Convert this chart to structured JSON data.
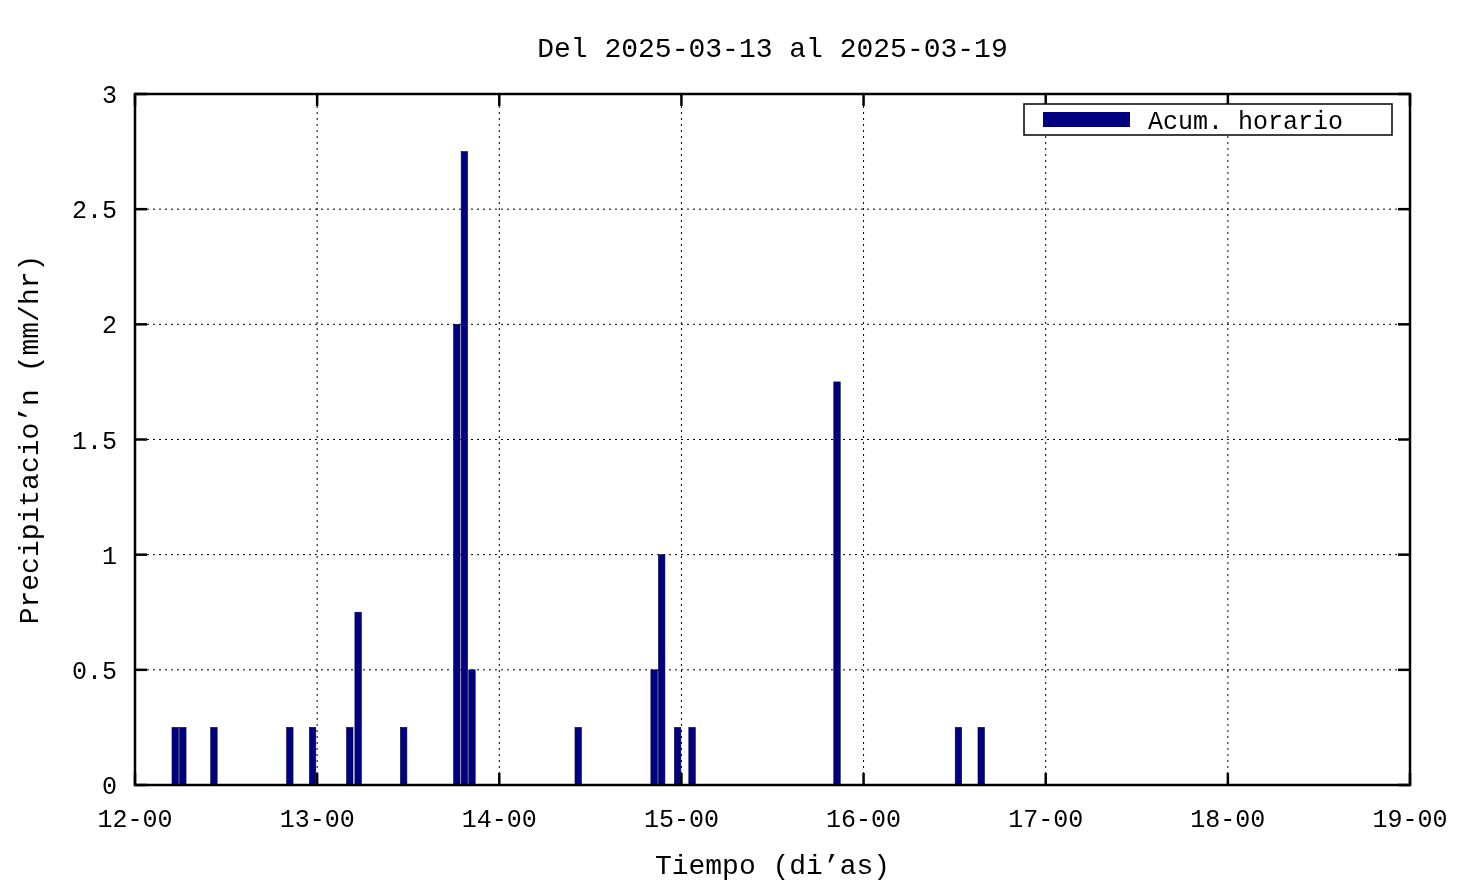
{
  "chart_data": {
    "type": "bar",
    "title": "Del 2025-03-13 al 2025-03-19",
    "xlabel": "Tiempo (di’as)",
    "ylabel": "Precipitacio’n (mm/hr)",
    "x": [
      "2025-03-12T05:18",
      "2025-03-12T06:18",
      "2025-03-12T10:24",
      "2025-03-12T20:24",
      "2025-03-12T23:24",
      "2025-03-13T04:18",
      "2025-03-13T05:24",
      "2025-03-13T11:24",
      "2025-03-13T18:24",
      "2025-03-13T19:24",
      "2025-03-13T20:24",
      "2025-03-14T10:24",
      "2025-03-14T20:24",
      "2025-03-14T21:24",
      "2025-03-14T23:30",
      "2025-03-15T01:24",
      "2025-03-15T20:30",
      "2025-03-16T12:30",
      "2025-03-16T15:30"
    ],
    "series": [
      {
        "name": "Acum. horario",
        "color": "#000080",
        "values": [
          0.25,
          0.25,
          0.25,
          0.25,
          0.25,
          0.25,
          0.75,
          0.25,
          2,
          2.75,
          0.5,
          0.25,
          0.5,
          1,
          0.25,
          0.25,
          1.75,
          0.25,
          0.25
        ]
      }
    ],
    "xlim": [
      "2025-03-12",
      "2025-03-19"
    ],
    "xticks": [
      {
        "value": "2025-03-12",
        "label": "12-00"
      },
      {
        "value": "2025-03-13",
        "label": "13-00"
      },
      {
        "value": "2025-03-14",
        "label": "14-00"
      },
      {
        "value": "2025-03-15",
        "label": "15-00"
      },
      {
        "value": "2025-03-16",
        "label": "16-00"
      },
      {
        "value": "2025-03-17",
        "label": "17-00"
      },
      {
        "value": "2025-03-18",
        "label": "18-00"
      },
      {
        "value": "2025-03-19",
        "label": "19-00"
      }
    ],
    "ylim": [
      0,
      3
    ],
    "yticks": [
      0,
      0.5,
      1,
      1.5,
      2,
      2.5,
      3
    ],
    "grid": true,
    "legend": "top right"
  }
}
